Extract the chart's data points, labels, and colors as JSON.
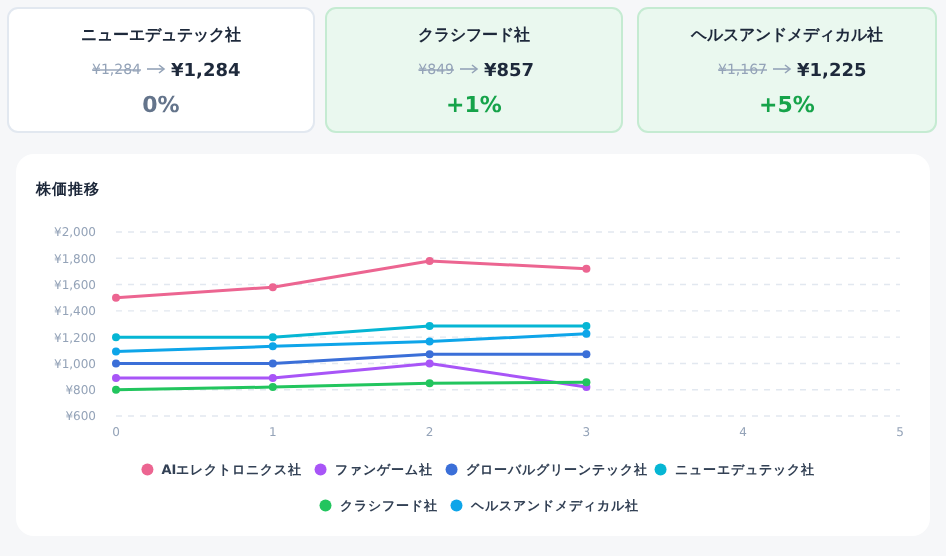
{
  "chart_data": [
    {
      "type": "other",
      "title": "ニューエデュテック社",
      "annotations": [
        "¥1,284",
        "¥1,284",
        "0%"
      ],
      "color": "#64748b"
    },
    {
      "type": "other",
      "title": "クラシフード社",
      "annotations": [
        "¥849",
        "¥857",
        "+1%"
      ],
      "color": "#16a34a"
    },
    {
      "type": "other",
      "title": "ヘルスアンドメディカル社",
      "annotations": [
        "¥1,167",
        "¥1,225",
        "+5%"
      ],
      "color": "#16a34a"
    },
    {
      "type": "line",
      "title": "株価推移",
      "x": [
        0,
        1,
        2,
        3
      ],
      "xlim": [
        0,
        5
      ],
      "xticks": [
        0,
        1,
        2,
        3,
        4,
        5
      ],
      "ylim": [
        600,
        2000
      ],
      "yticks": [
        {
          "value": 600,
          "label": "¥600"
        },
        {
          "value": 800,
          "label": "¥800"
        },
        {
          "value": 1000,
          "label": "¥1,000"
        },
        {
          "value": 1200,
          "label": "¥1,200"
        },
        {
          "value": 1400,
          "label": "¥1,400"
        },
        {
          "value": 1600,
          "label": "¥1,600"
        },
        {
          "value": 1800,
          "label": "¥1,800"
        },
        {
          "value": 2000,
          "label": "¥2,000"
        }
      ],
      "grid": "y",
      "legend": "bottom",
      "marker": "circle",
      "line_style": "solid",
      "series": [
        {
          "name": "AIエレクトロニクス社",
          "color": "#ec6591",
          "values": [
            1500,
            1580,
            1780,
            1720
          ]
        },
        {
          "name": "ファンゲーム社",
          "color": "#a855f7",
          "values": [
            890,
            890,
            1000,
            820
          ]
        },
        {
          "name": "グローバルグリーンテック社",
          "color": "#3b6fd8",
          "values": [
            1000,
            1000,
            1070,
            1070
          ]
        },
        {
          "name": "ニューエデュテック社",
          "color": "#06b6d4",
          "values": [
            1200,
            1200,
            1284,
            1284
          ]
        },
        {
          "name": "クラシフード社",
          "color": "#22c55e",
          "values": [
            800,
            820,
            849,
            857
          ]
        },
        {
          "name": "ヘルスアンドメディカル社",
          "color": "#0ea5e9",
          "values": [
            1090,
            1130,
            1167,
            1225
          ]
        }
      ]
    }
  ]
}
